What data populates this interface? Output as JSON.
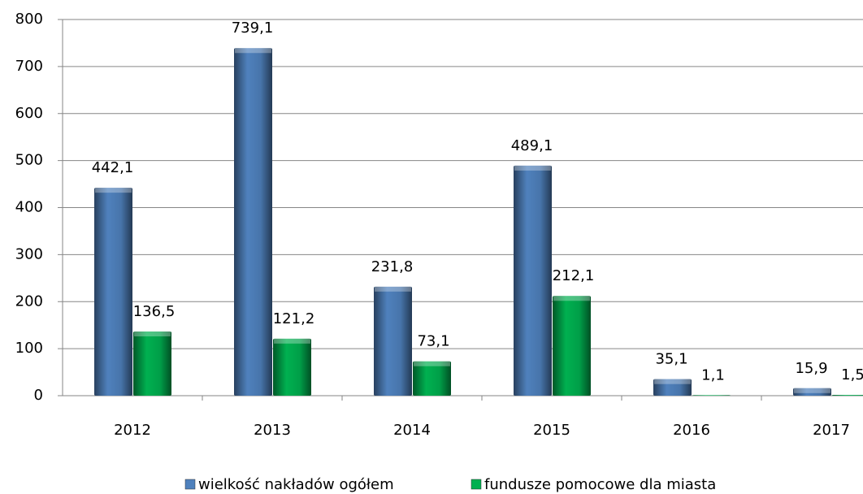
{
  "chart_data": {
    "type": "bar",
    "categories": [
      "2012",
      "2013",
      "2014",
      "2015",
      "2016",
      "2017"
    ],
    "series": [
      {
        "name": "wielkość nakładów ogółem",
        "color": "#4f81bd",
        "values": [
          442.1,
          739.1,
          231.8,
          489.1,
          35.1,
          15.9
        ],
        "value_labels": [
          "442,1",
          "739,1",
          "231,8",
          "489,1",
          "35,1",
          "15,9"
        ]
      },
      {
        "name": "fundusze pomocowe dla miasta",
        "color": "#00b050",
        "values": [
          136.5,
          121.2,
          73.1,
          212.1,
          1.1,
          1.5
        ],
        "value_labels": [
          "136,5",
          "121,2",
          "73,1",
          "212,1",
          "1,1",
          "1,5"
        ]
      }
    ],
    "ylim": [
      0,
      800
    ],
    "yticks": [
      0,
      100,
      200,
      300,
      400,
      500,
      600,
      700,
      800
    ],
    "grid": true
  }
}
